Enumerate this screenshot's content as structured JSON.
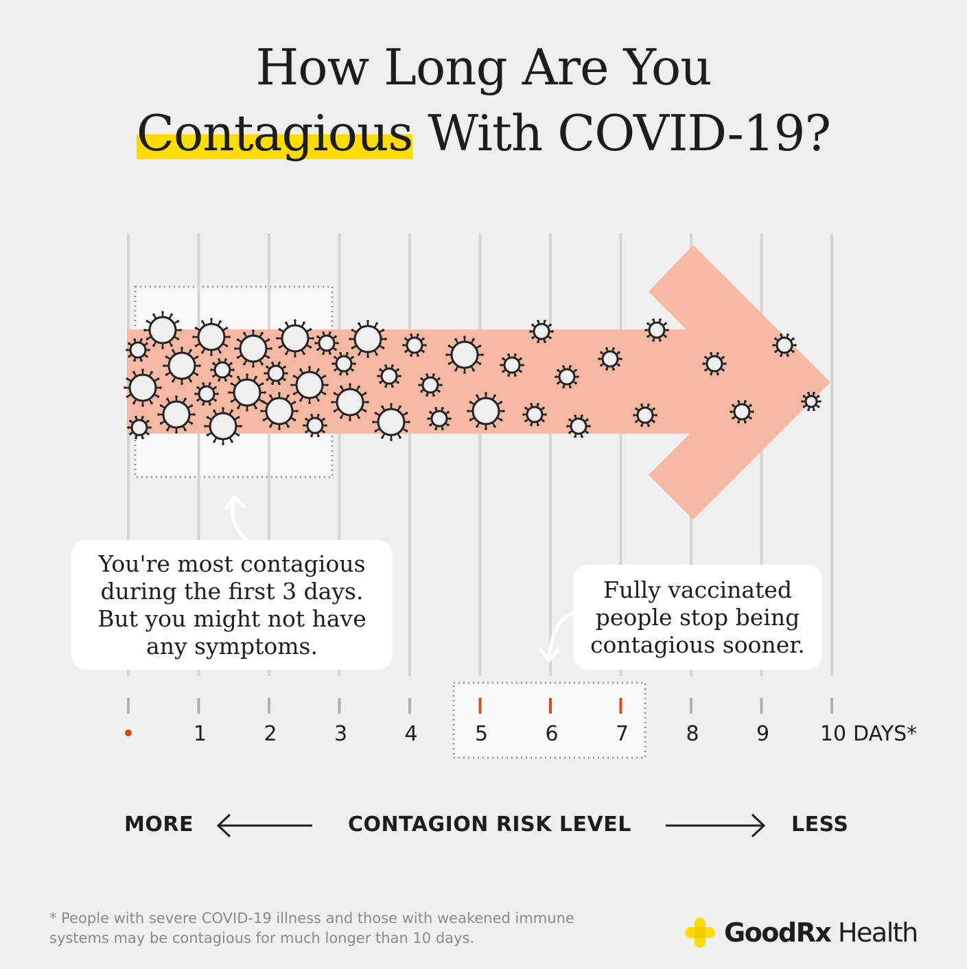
{
  "title": {
    "line1": "How Long Are You",
    "highlight": "Contagious",
    "line2_rest": " With COVID-19?"
  },
  "timeline": {
    "days": [
      "•",
      "1",
      "2",
      "3",
      "4",
      "5",
      "6",
      "7",
      "8",
      "9",
      "10"
    ],
    "unit": "DAYS*",
    "highlighted_days": [
      "5",
      "6",
      "7"
    ]
  },
  "callouts": {
    "most_contagious": "You're most contagious during the first 3 days. But you might not have any symptoms.",
    "vaccinated": "Fully vaccinated people stop being contagious sooner."
  },
  "risk_scale": {
    "more": "MORE",
    "label": "CONTAGION RISK LEVEL",
    "less": "LESS"
  },
  "footnote": {
    "line1": "* People with severe COVID-19 illness and those with weakened immune",
    "line2": "systems may be contagious for much longer than 10 days."
  },
  "logo": {
    "brand": "GoodRx",
    "suffix": " Health"
  },
  "colors": {
    "background": "#efefef",
    "arrow": "#f5b9a3",
    "highlight": "#ffdc00",
    "accent_red": "#d9471c",
    "virus_stroke": "#222222"
  },
  "icons": {
    "virus": "virus-icon",
    "logo": "plus-cross-icon"
  }
}
